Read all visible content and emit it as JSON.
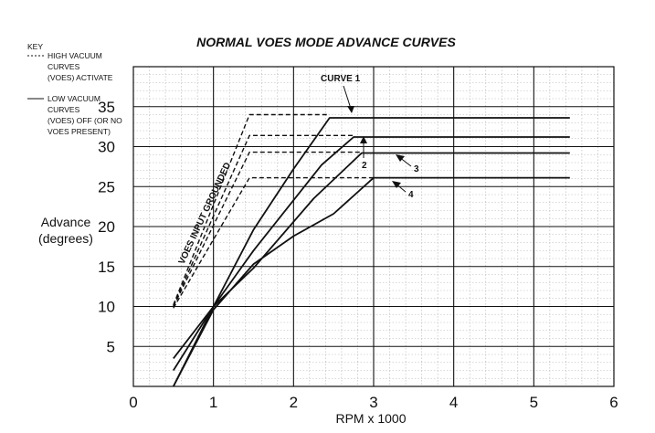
{
  "chart_data": {
    "type": "line",
    "title": "NORMAL VOES MODE ADVANCE CURVES",
    "xlabel": "RPM x 1000",
    "ylabel_line1": "Advance",
    "ylabel_line2": "(degrees)",
    "xlim": [
      0,
      6
    ],
    "ylim": [
      0,
      40
    ],
    "x_ticks": [
      "0",
      "1",
      "2",
      "3",
      "4",
      "5",
      "6"
    ],
    "y_ticks": [
      "5",
      "10",
      "15",
      "20",
      "25",
      "30",
      "35"
    ],
    "grid": true,
    "key": {
      "heading": "KEY",
      "dashed_lines": [
        "HIGH VACUUM",
        "CURVES",
        "(VOES) ACTIVATE"
      ],
      "solid_lines": [
        "LOW VACUUM",
        "CURVES",
        "(VOES) OFF (OR NO",
        "VOES PRESENT)"
      ]
    },
    "annotations": {
      "voes": "VOES INPUT GROUNDED",
      "curve1": "CURVE 1",
      "curve2": "2",
      "curve3": "3",
      "curve4": "4"
    },
    "series": [
      {
        "name": "CURVE 1",
        "style": "solid",
        "x": [
          0.5,
          1.0,
          1.5,
          2.0,
          2.45,
          5.45
        ],
        "y": [
          0,
          10,
          19.6,
          27.2,
          33.6,
          33.6
        ]
      },
      {
        "name": "2",
        "style": "solid",
        "x": [
          0.5,
          1.0,
          1.5,
          2.35,
          2.75,
          5.45
        ],
        "y": [
          2,
          10,
          17,
          27.7,
          31.2,
          31.2
        ]
      },
      {
        "name": "3",
        "style": "solid",
        "x": [
          0.5,
          1.0,
          1.5,
          2.25,
          2.85,
          5.45
        ],
        "y": [
          3.5,
          10,
          14.8,
          23.5,
          29.2,
          29.2
        ]
      },
      {
        "name": "4",
        "style": "solid",
        "x": [
          0.5,
          1.0,
          1.5,
          2.0,
          2.5,
          3.0,
          5.45
        ],
        "y": [
          0,
          9.6,
          15.3,
          18.8,
          21.6,
          26.1,
          26.1
        ]
      },
      {
        "name": "CURVE 1",
        "style": "dashed",
        "x": [
          0.5,
          1.45,
          2.45
        ],
        "y": [
          10.2,
          34,
          34
        ]
      },
      {
        "name": "2",
        "style": "dashed",
        "x": [
          0.5,
          1.45,
          2.75
        ],
        "y": [
          10.1,
          31.4,
          31.4
        ]
      },
      {
        "name": "3",
        "style": "dashed",
        "x": [
          0.5,
          1.45,
          2.85
        ],
        "y": [
          10,
          29.3,
          29.3
        ]
      },
      {
        "name": "4",
        "style": "dashed",
        "x": [
          0.5,
          1.45,
          3.0
        ],
        "y": [
          9.8,
          26.1,
          26.1
        ]
      }
    ]
  }
}
